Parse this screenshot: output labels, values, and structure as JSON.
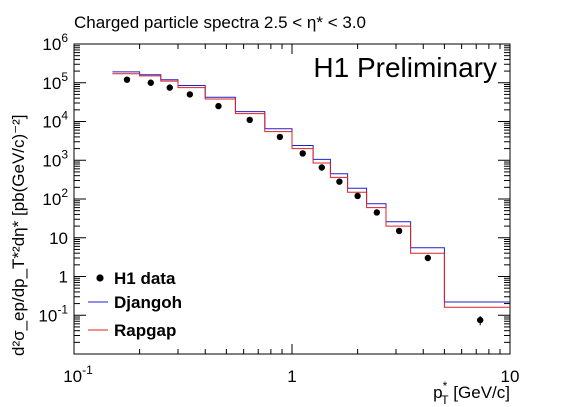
{
  "chart_data": {
    "type": "scatter",
    "title": "Charged particle spectra 2.5 < η* < 3.0",
    "watermark": "H1 Preliminary",
    "xlabel": {
      "main": "p",
      "sup": "*",
      "sub": "T",
      "unit": " [GeV/c]"
    },
    "ylabel": "d²σ_ep/dp_T*²dη* [pb(GeV/c)⁻²]",
    "x_scale": "log",
    "y_scale": "log",
    "xlim": [
      0.1,
      10
    ],
    "ylim": [
      0.01,
      1000000
    ],
    "x_ticks": [
      {
        "value": 0.1,
        "label": "10",
        "exp": "-1"
      },
      {
        "value": 1,
        "label": "1",
        "exp": ""
      },
      {
        "value": 10,
        "label": "10",
        "exp": ""
      }
    ],
    "y_ticks": [
      {
        "value": 0.1,
        "label": "10",
        "exp": "-1"
      },
      {
        "value": 1,
        "label": "1",
        "exp": ""
      },
      {
        "value": 10,
        "label": "10",
        "exp": ""
      },
      {
        "value": 100,
        "label": "10",
        "exp": "2"
      },
      {
        "value": 1000,
        "label": "10",
        "exp": "3"
      },
      {
        "value": 10000,
        "label": "10",
        "exp": "4"
      },
      {
        "value": 100000,
        "label": "10",
        "exp": "5"
      },
      {
        "value": 1000000,
        "label": "10",
        "exp": "6"
      }
    ],
    "legend_position": "bottom-left",
    "series": [
      {
        "name": "H1 data",
        "kind": "points",
        "color": "#000000",
        "points": [
          {
            "x": 0.175,
            "y": 120000
          },
          {
            "x": 0.225,
            "y": 100000
          },
          {
            "x": 0.275,
            "y": 75000
          },
          {
            "x": 0.34,
            "y": 50000
          },
          {
            "x": 0.46,
            "y": 25000
          },
          {
            "x": 0.64,
            "y": 11000
          },
          {
            "x": 0.88,
            "y": 4000
          },
          {
            "x": 1.12,
            "y": 1500
          },
          {
            "x": 1.37,
            "y": 650
          },
          {
            "x": 1.65,
            "y": 280
          },
          {
            "x": 2.0,
            "y": 120
          },
          {
            "x": 2.45,
            "y": 45
          },
          {
            "x": 3.1,
            "y": 15
          },
          {
            "x": 4.2,
            "y": 3
          },
          {
            "x": 7.3,
            "y": 0.075,
            "err_low": 0.055,
            "err_high": 0.095
          }
        ]
      },
      {
        "name": "Djangoh",
        "kind": "histogram",
        "color": "#2020d0",
        "edges": [
          0.15,
          0.2,
          0.25,
          0.3,
          0.4,
          0.55,
          0.75,
          1.0,
          1.25,
          1.5,
          1.8,
          2.2,
          2.7,
          3.5,
          5.0,
          10.0
        ],
        "values": [
          190000,
          160000,
          120000,
          85000,
          42000,
          18000,
          6500,
          2400,
          1050,
          450,
          190,
          75,
          26,
          5.5,
          0.22
        ]
      },
      {
        "name": "Rapgap",
        "kind": "histogram",
        "color": "#e02020",
        "edges": [
          0.15,
          0.2,
          0.25,
          0.3,
          0.4,
          0.55,
          0.75,
          1.0,
          1.25,
          1.5,
          1.8,
          2.2,
          2.7,
          3.5,
          5.0,
          10.0
        ],
        "values": [
          170000,
          150000,
          110000,
          75000,
          38000,
          16000,
          5500,
          2000,
          850,
          360,
          150,
          60,
          20,
          4.0,
          0.16
        ]
      }
    ]
  }
}
